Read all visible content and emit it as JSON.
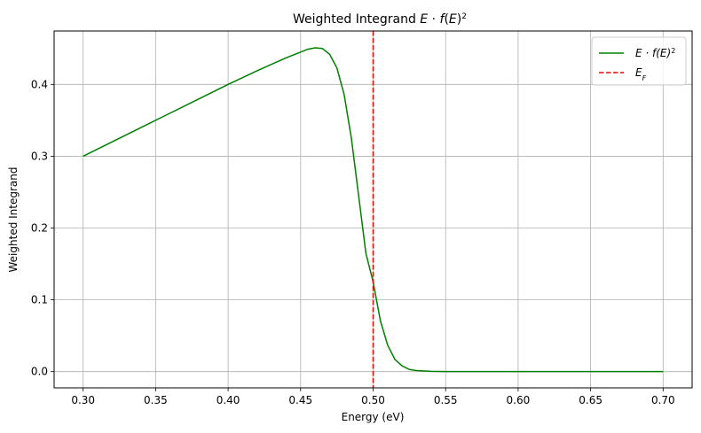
{
  "chart_data": {
    "type": "line",
    "title": "Weighted Integrand E·f(E)²",
    "xlabel": "Energy (eV)",
    "ylabel": "Weighted Integrand",
    "xlim": [
      0.28,
      0.72
    ],
    "ylim": [
      -0.0226,
      0.4744
    ],
    "xticks": [
      0.3,
      0.35,
      0.4,
      0.45,
      0.5,
      0.55,
      0.6,
      0.65,
      0.7
    ],
    "xtick_labels": [
      "0.30",
      "0.35",
      "0.40",
      "0.45",
      "0.50",
      "0.55",
      "0.60",
      "0.65",
      "0.70"
    ],
    "yticks": [
      0.0,
      0.1,
      0.2,
      0.3,
      0.4
    ],
    "ytick_labels": [
      "0.0",
      "0.1",
      "0.2",
      "0.3",
      "0.4"
    ],
    "grid": true,
    "legend_position": "top-right",
    "series": [
      {
        "name": "E·f(E)²",
        "color": "#008000",
        "style": "solid",
        "x": [
          0.3,
          0.32,
          0.34,
          0.36,
          0.38,
          0.4,
          0.42,
          0.43,
          0.44,
          0.45,
          0.455,
          0.46,
          0.465,
          0.47,
          0.475,
          0.48,
          0.485,
          0.49,
          0.495,
          0.5,
          0.505,
          0.51,
          0.515,
          0.52,
          0.525,
          0.53,
          0.54,
          0.55,
          0.6,
          0.65,
          0.7
        ],
        "y": [
          0.3,
          0.32,
          0.34,
          0.36,
          0.38,
          0.4,
          0.419,
          0.428,
          0.437,
          0.445,
          0.449,
          0.451,
          0.45,
          0.442,
          0.423,
          0.386,
          0.325,
          0.245,
          0.165,
          0.125,
          0.071,
          0.037,
          0.017,
          0.008,
          0.003,
          0.0015,
          0.0003,
          0.0001,
          0.0,
          0.0,
          0.0
        ]
      },
      {
        "name": "E_F",
        "color": "#ff0000",
        "style": "dashed",
        "vline_x": 0.5
      }
    ]
  }
}
